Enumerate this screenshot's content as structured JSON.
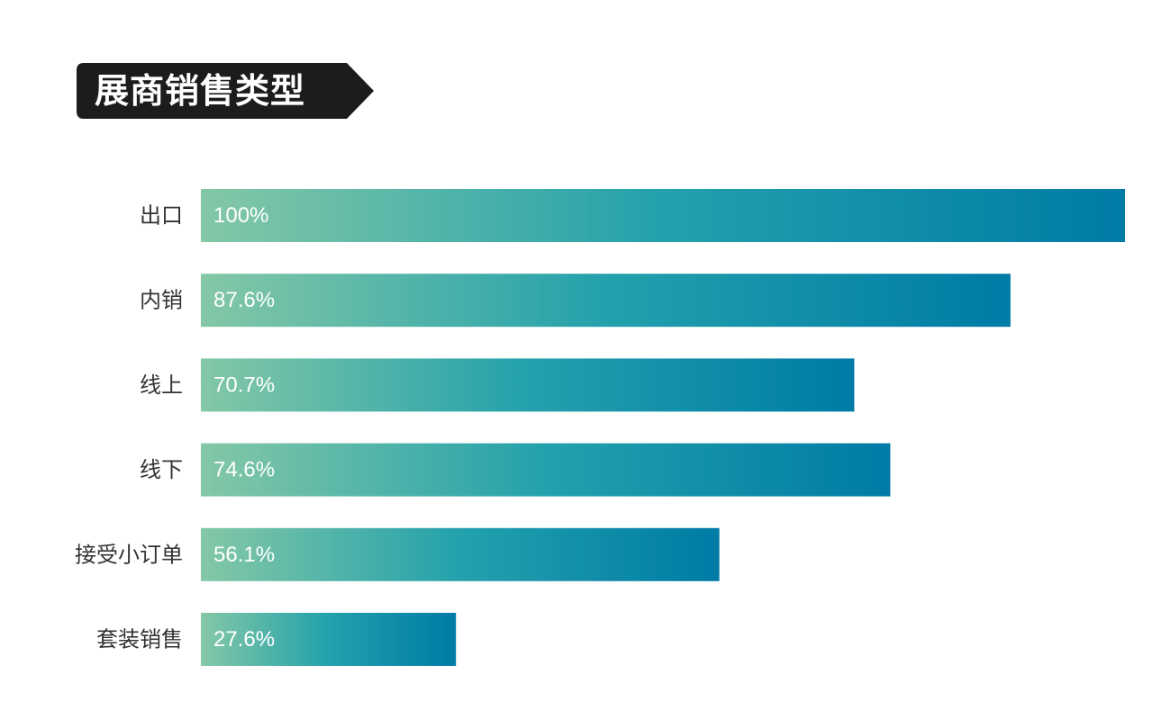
{
  "chart_data": {
    "type": "bar",
    "orientation": "horizontal",
    "title": "展商销售类型",
    "categories": [
      "出口",
      "内销",
      "线上",
      "线下",
      "接受小订单",
      "套装销售"
    ],
    "values": [
      100,
      87.6,
      70.7,
      74.6,
      56.1,
      27.6
    ],
    "value_labels": [
      "100%",
      "87.6%",
      "70.7%",
      "74.6%",
      "56.1%",
      "27.6%"
    ],
    "unit": "%",
    "xlim": [
      0,
      100
    ],
    "grid": false,
    "legend": "none",
    "colors": {
      "bar_gradient_start": "#84c8a6",
      "bar_gradient_mid": "#23a1ac",
      "bar_gradient_end": "#007ba6",
      "title_badge_bg": "#1c1c1c",
      "title_text": "#ffffff",
      "category_text": "#333333",
      "value_text": "#ffffff"
    }
  }
}
